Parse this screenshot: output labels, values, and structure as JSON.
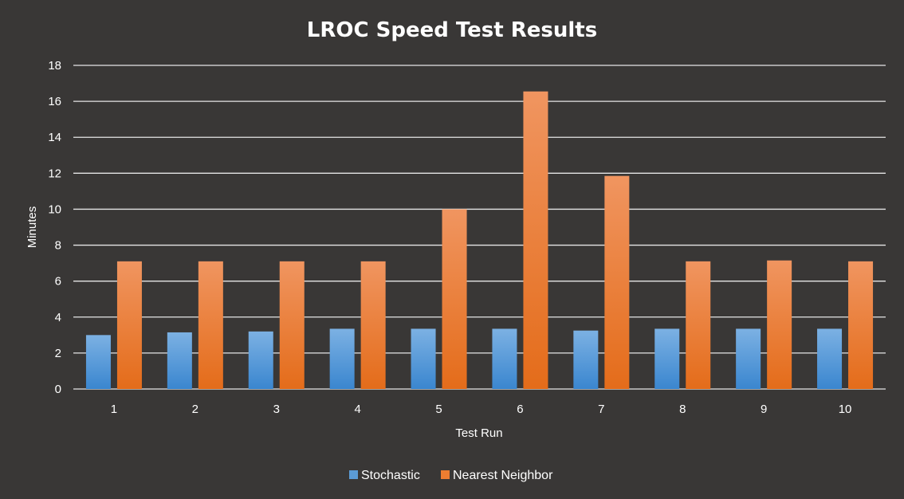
{
  "chart_data": {
    "type": "bar",
    "title": "LROC Speed Test Results",
    "xlabel": "Test Run",
    "ylabel": "Minutes",
    "categories": [
      "1",
      "2",
      "3",
      "4",
      "5",
      "6",
      "7",
      "8",
      "9",
      "10"
    ],
    "series": [
      {
        "name": "Stochastic",
        "values": [
          3.0,
          3.15,
          3.2,
          3.35,
          3.35,
          3.35,
          3.25,
          3.35,
          3.35,
          3.35
        ],
        "color": "#5b9bd5"
      },
      {
        "name": "Nearest Neighbor",
        "values": [
          7.1,
          7.1,
          7.1,
          7.1,
          10.0,
          16.55,
          11.85,
          7.1,
          7.15,
          7.1
        ],
        "color": "#ed7d31"
      }
    ],
    "ylim": [
      0,
      18
    ],
    "yticks": [
      "0",
      "2",
      "4",
      "6",
      "8",
      "10",
      "12",
      "14",
      "16",
      "18"
    ],
    "grid": true,
    "legend_position": "bottom",
    "background": "#393736"
  }
}
